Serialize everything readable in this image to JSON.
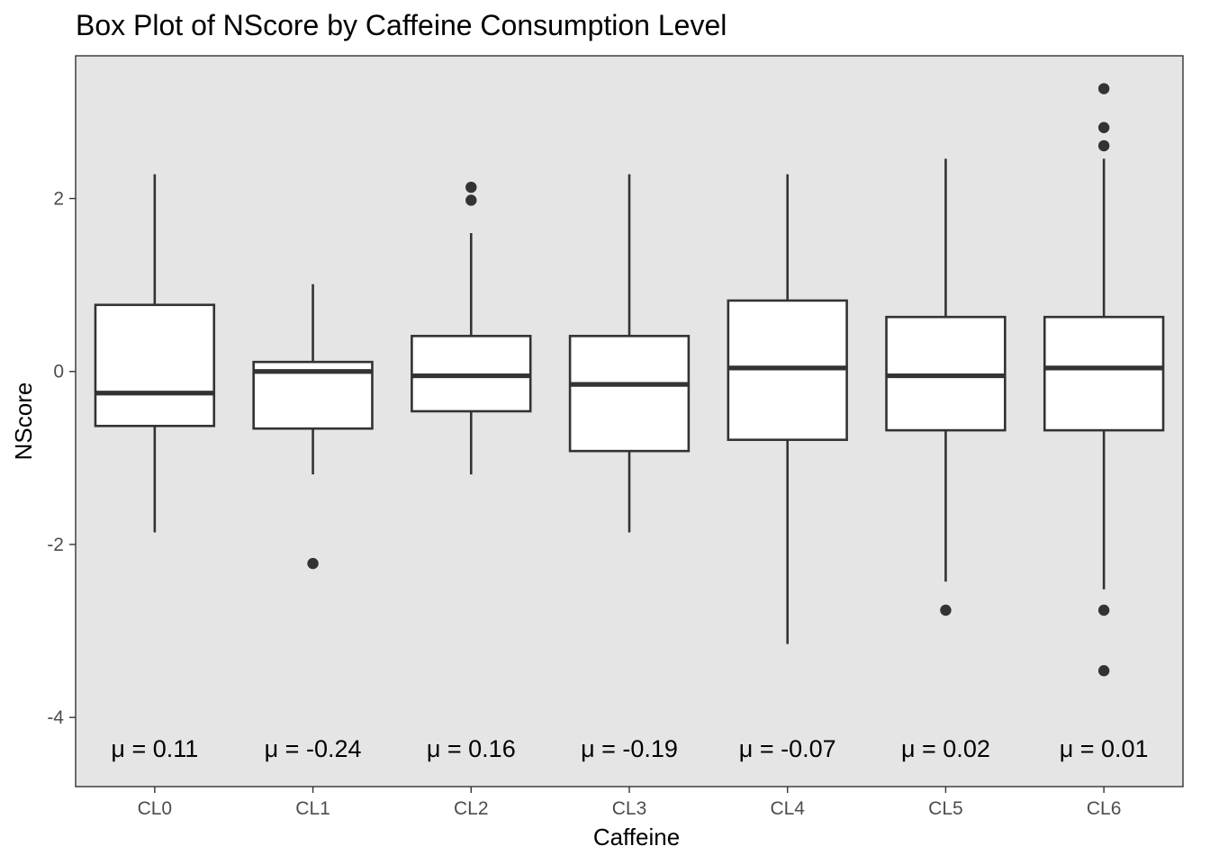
{
  "chart_data": {
    "type": "box",
    "title": "Box Plot of NScore by Caffeine Consumption Level",
    "xlabel": "Caffeine",
    "ylabel": "NScore",
    "categories": [
      "CL0",
      "CL1",
      "CL2",
      "CL3",
      "CL4",
      "CL5",
      "CL6"
    ],
    "ylim": [
      -4.8,
      3.65
    ],
    "yticks": [
      -4,
      -2,
      0,
      2
    ],
    "grid": false,
    "legend": "none",
    "boxes": [
      {
        "category": "CL0",
        "lower_whisker": -1.86,
        "q1": -0.63,
        "median": -0.25,
        "q3": 0.77,
        "upper_whisker": 2.28,
        "outliers": [],
        "mean_label": "μ = 0.11"
      },
      {
        "category": "CL1",
        "lower_whisker": -1.19,
        "q1": -0.66,
        "median": 0.0,
        "q3": 0.11,
        "upper_whisker": 1.01,
        "outliers": [
          -2.22
        ],
        "mean_label": "μ = -0.24"
      },
      {
        "category": "CL2",
        "lower_whisker": -1.19,
        "q1": -0.46,
        "median": -0.05,
        "q3": 0.41,
        "upper_whisker": 1.6,
        "outliers": [
          1.98,
          2.13
        ],
        "mean_label": "μ = 0.16"
      },
      {
        "category": "CL3",
        "lower_whisker": -1.86,
        "q1": -0.92,
        "median": -0.15,
        "q3": 0.41,
        "upper_whisker": 2.28,
        "outliers": [],
        "mean_label": "μ = -0.19"
      },
      {
        "category": "CL4",
        "lower_whisker": -3.15,
        "q1": -0.79,
        "median": 0.04,
        "q3": 0.82,
        "upper_whisker": 2.28,
        "outliers": [],
        "mean_label": "μ = -0.07"
      },
      {
        "category": "CL5",
        "lower_whisker": -2.43,
        "q1": -0.68,
        "median": -0.05,
        "q3": 0.63,
        "upper_whisker": 2.46,
        "outliers": [
          -2.76
        ],
        "mean_label": "μ = 0.02"
      },
      {
        "category": "CL6",
        "lower_whisker": -2.52,
        "q1": -0.68,
        "median": 0.04,
        "q3": 0.63,
        "upper_whisker": 2.46,
        "outliers": [
          2.61,
          2.82,
          3.27,
          -2.76,
          -3.46
        ],
        "mean_label": "μ = 0.01"
      }
    ],
    "colors": {
      "panel_background": "#e5e5e5",
      "box_fill": "#ffffff",
      "box_stroke": "#333333",
      "outlier": "#333333",
      "tick_text": "#4d4d4d"
    }
  }
}
